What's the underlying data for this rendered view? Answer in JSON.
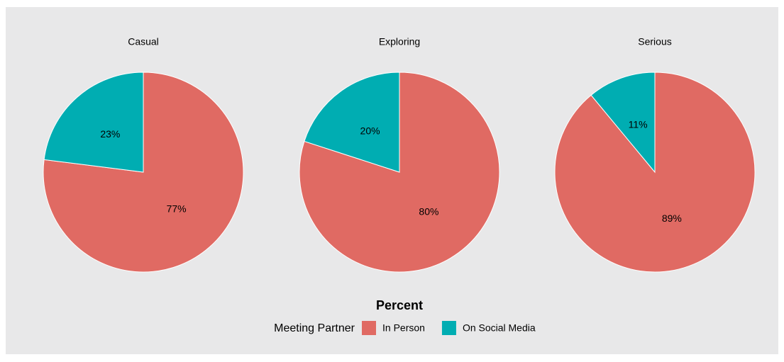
{
  "chart_data": [
    {
      "type": "pie",
      "title": "Casual",
      "categories": [
        "In Person",
        "On Social Media"
      ],
      "values": [
        77,
        23
      ],
      "value_labels": [
        "77%",
        "23%"
      ],
      "colors": [
        "#e06a63",
        "#00adb2"
      ]
    },
    {
      "type": "pie",
      "title": "Exploring",
      "categories": [
        "In Person",
        "On Social Media"
      ],
      "values": [
        80,
        20
      ],
      "value_labels": [
        "80%",
        "20%"
      ],
      "colors": [
        "#e06a63",
        "#00adb2"
      ]
    },
    {
      "type": "pie",
      "title": "Serious",
      "categories": [
        "In Person",
        "On Social Media"
      ],
      "values": [
        89,
        11
      ],
      "value_labels": [
        "89%",
        "11%"
      ],
      "colors": [
        "#e06a63",
        "#00adb2"
      ]
    }
  ],
  "xlabel": "Percent",
  "legend_title": "Meeting Partner"
}
